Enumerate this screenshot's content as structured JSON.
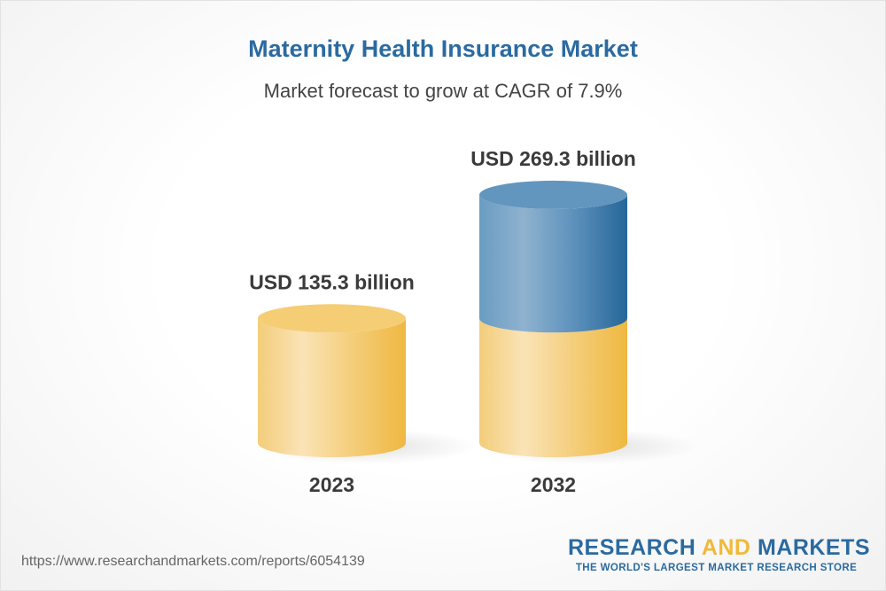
{
  "title": "Maternity Health Insurance Market",
  "subtitle": "Market forecast to grow at CAGR of 7.9%",
  "chart_data": {
    "type": "bar",
    "style": "3d-cylinder",
    "categories": [
      "2023",
      "2032"
    ],
    "values": [
      135.3,
      269.3
    ],
    "data_labels": [
      "USD 135.3 billion",
      "USD 269.3 billion"
    ],
    "unit": "USD billion",
    "cagr": "7.9%",
    "colors": {
      "base": "#f2c35a",
      "growth": "#2d6a9e"
    }
  },
  "footer": {
    "url": "https://www.researchandmarkets.com/reports/6054139",
    "logo_part1": "RESEARCH ",
    "logo_part2": "AND",
    "logo_part3": " MARKETS",
    "tagline": "THE WORLD'S LARGEST MARKET RESEARCH STORE"
  }
}
